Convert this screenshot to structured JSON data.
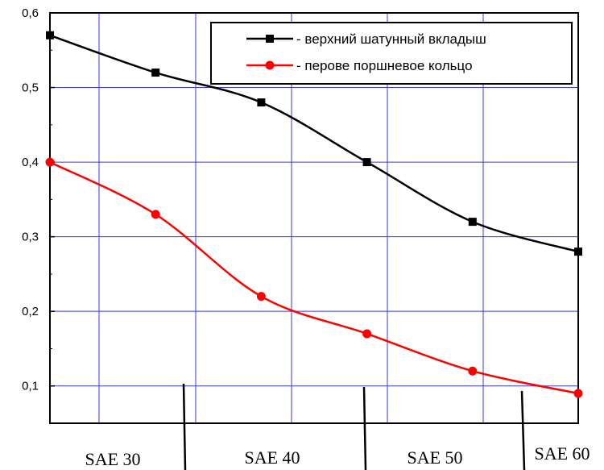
{
  "chart_data": {
    "type": "line",
    "title": "",
    "xlabel": "",
    "ylabel": "",
    "x": [
      0,
      1,
      2,
      3,
      4,
      5
    ],
    "ylim": [
      0.05,
      0.6
    ],
    "yticks": [
      0.1,
      0.2,
      0.3,
      0.4,
      0.5,
      0.6
    ],
    "ytick_labels": [
      "0,1",
      "0,2",
      "0,3",
      "0,4",
      "0,5",
      "0,6"
    ],
    "grid": true,
    "grid_color": "#3a3adb",
    "legend_position": "top-right",
    "series": [
      {
        "name": "- верхний шатунный вкладыш",
        "color": "#000000",
        "marker": "square",
        "values": [
          0.57,
          0.52,
          0.48,
          0.4,
          0.32,
          0.28
        ]
      },
      {
        "name": "- перове поршневое кольцо",
        "color": "#ff0000",
        "marker": "circle",
        "values": [
          0.4,
          0.33,
          0.22,
          0.17,
          0.12,
          0.09
        ]
      }
    ],
    "categories": [
      "SAE 30",
      "SAE 40",
      "SAE 50",
      "SAE 60"
    ]
  }
}
